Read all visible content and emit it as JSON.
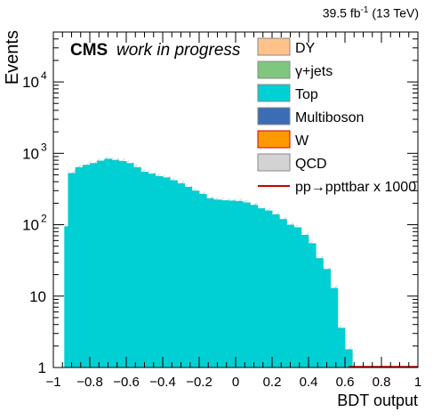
{
  "lumi": {
    "value": "39.5 fb",
    "exponent": "-1",
    "energy": "(13 TeV)"
  },
  "labels": {
    "experiment": "CMS",
    "status": "work in progress"
  },
  "chart_data": {
    "type": "bar",
    "title": "",
    "xlabel": "BDT output",
    "ylabel": "Events",
    "xlim": [
      -1,
      1
    ],
    "ylim": [
      1,
      50000
    ],
    "yscale": "log",
    "grid": false,
    "legend_position": "top-right",
    "x_ticks": [
      "−1",
      "−0.8",
      "−0.6",
      "−0.4",
      "−0.2",
      "0",
      "0.2",
      "0.4",
      "0.6",
      "0.8",
      "1"
    ],
    "y_ticks": [
      {
        "value": 1,
        "label": "1"
      },
      {
        "value": 10,
        "label": "10"
      },
      {
        "value": 100,
        "label": "10",
        "exp": "2"
      },
      {
        "value": 1000,
        "label": "10",
        "exp": "3"
      },
      {
        "value": 10000,
        "label": "10",
        "exp": "4"
      }
    ],
    "bin_edges": [
      -0.94,
      -0.92,
      -0.88,
      -0.84,
      -0.8,
      -0.76,
      -0.72,
      -0.68,
      -0.64,
      -0.6,
      -0.56,
      -0.52,
      -0.48,
      -0.44,
      -0.4,
      -0.36,
      -0.32,
      -0.28,
      -0.24,
      -0.2,
      -0.16,
      -0.12,
      -0.08,
      -0.04,
      0.0,
      0.04,
      0.08,
      0.12,
      0.16,
      0.2,
      0.24,
      0.28,
      0.32,
      0.36,
      0.4,
      0.44,
      0.48,
      0.52,
      0.56,
      0.6,
      0.64
    ],
    "series": [
      {
        "name": "DY",
        "color": "#ffc28a",
        "values": []
      },
      {
        "name": "γ+jets",
        "color": "#7fc77f",
        "values": []
      },
      {
        "name": "Top",
        "color": "#00d0d3",
        "values": [
          95,
          530,
          640,
          690,
          730,
          790,
          840,
          810,
          780,
          730,
          640,
          550,
          520,
          480,
          460,
          420,
          380,
          340,
          300,
          270,
          235,
          225,
          220,
          218,
          215,
          205,
          190,
          170,
          158,
          140,
          120,
          100,
          92,
          72,
          55,
          34,
          24,
          13,
          3.6,
          1.8
        ]
      },
      {
        "name": "Multiboson",
        "color": "#3a6db5",
        "values": []
      },
      {
        "name": "W",
        "color": "#ff9900",
        "values": []
      },
      {
        "name": "QCD",
        "color": "#d3d3d3",
        "values": []
      },
      {
        "name": "pp→ppttbar x 1000",
        "color": "#cc0000",
        "type": "line",
        "x": [
          0.62,
          1.0
        ],
        "values": [
          1.0,
          1.0
        ]
      }
    ]
  }
}
